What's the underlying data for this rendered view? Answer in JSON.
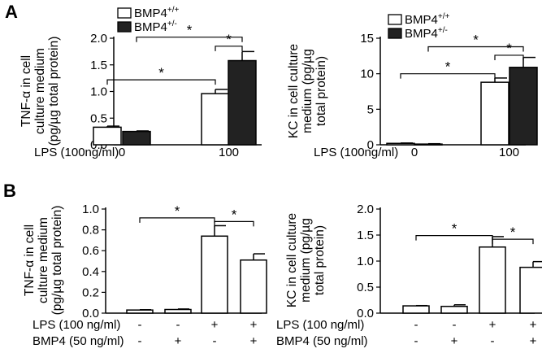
{
  "chart_data": [
    {
      "id": "A_left",
      "panel_label": "A",
      "type": "bar",
      "ylabel": [
        "TNF-α in cell",
        "culture medium",
        "(pg/µg total protein)"
      ],
      "ylim": [
        0,
        2.0
      ],
      "yticks": [
        "0.0",
        "0.5",
        "1.0",
        "1.5",
        "2.0"
      ],
      "x_row_labels": [
        "LPS (100ng/ml)"
      ],
      "groups": [
        {
          "label": "0"
        },
        {
          "label": "100"
        }
      ],
      "legend": {
        "entries": [
          {
            "name": "BMP4",
            "sup": "+/+",
            "color": "#ffffff"
          },
          {
            "name": "BMP4",
            "sup": "+/-",
            "color": "#222222"
          }
        ]
      },
      "series": [
        {
          "name": "BMP4+/+",
          "color": "#ffffff",
          "values": [
            0.33,
            0.96
          ],
          "errors": [
            0.02,
            0.08
          ]
        },
        {
          "name": "BMP4+/-",
          "color": "#222222",
          "values": [
            0.25,
            1.58
          ],
          "errors": [
            0.01,
            0.17
          ]
        }
      ],
      "significance": [
        {
          "from": [
            0,
            0
          ],
          "to": [
            1,
            0
          ],
          "label": "*",
          "level": 1.22
        },
        {
          "from": [
            1,
            1
          ],
          "to": [
            0,
            1
          ],
          "label": "*",
          "level": 2.02
        },
        {
          "from": [
            1,
            0
          ],
          "to": [
            1,
            1
          ],
          "label": "*",
          "level": 1.85
        }
      ]
    },
    {
      "id": "A_right",
      "type": "bar",
      "ylabel": [
        "KC in cell culture",
        "medium (pg/µg",
        "total protein)"
      ],
      "ylim": [
        0,
        15
      ],
      "yticks": [
        "0",
        "5",
        "10",
        "15"
      ],
      "x_row_labels": [
        "LPS (100ng/ml)"
      ],
      "groups": [
        {
          "label": "0"
        },
        {
          "label": "100"
        }
      ],
      "legend": {
        "entries": [
          {
            "name": "BMP4",
            "sup": "+/+",
            "color": "#ffffff"
          },
          {
            "name": "BMP4",
            "sup": "+/-",
            "color": "#222222"
          }
        ]
      },
      "series": [
        {
          "name": "BMP4+/+",
          "color": "#ffffff",
          "values": [
            0.2,
            8.8
          ],
          "errors": [
            0.05,
            0.6
          ]
        },
        {
          "name": "BMP4+/-",
          "color": "#222222",
          "values": [
            0.1,
            10.9
          ],
          "errors": [
            0.05,
            1.4
          ]
        }
      ],
      "significance": [
        {
          "from": [
            0,
            0
          ],
          "to": [
            1,
            0
          ],
          "label": "*",
          "level": 10.0
        },
        {
          "from": [
            1,
            1
          ],
          "to": [
            0,
            1
          ],
          "label": "*",
          "level": 13.8
        },
        {
          "from": [
            1,
            0
          ],
          "to": [
            1,
            1
          ],
          "label": "*",
          "level": 12.6
        }
      ]
    },
    {
      "id": "B_left",
      "panel_label": "B",
      "type": "bar",
      "ylabel": [
        "TNF-α in cell",
        "culture medium",
        "(pg/µg total protein)"
      ],
      "ylim": [
        0,
        1.0
      ],
      "yticks": [
        "0.0",
        "0.2",
        "0.4",
        "0.6",
        "0.8",
        "1.0"
      ],
      "x_row_labels": [
        "LPS (100 ng/ml)",
        "BMP4 (50 ng/ml)"
      ],
      "categories": [
        [
          "-",
          "-"
        ],
        [
          "-",
          "+"
        ],
        [
          "+",
          "-"
        ],
        [
          "+",
          "+"
        ]
      ],
      "series": [
        {
          "name": "",
          "color": "#ffffff",
          "values": [
            0.03,
            0.035,
            0.74,
            0.51
          ],
          "errors": [
            0.003,
            0.005,
            0.1,
            0.06
          ]
        }
      ],
      "significance": [
        {
          "from": 0,
          "to": 2,
          "label": "*",
          "level": 0.915
        },
        {
          "from": 2,
          "to": 3,
          "label": "*",
          "level": 0.88
        }
      ]
    },
    {
      "id": "B_right",
      "type": "bar",
      "ylabel": [
        "KC in cell culture",
        "medium (pg/µg",
        "total protein)"
      ],
      "ylim": [
        0,
        2.0
      ],
      "yticks": [
        "0.0",
        "0.5",
        "1.0",
        "1.5",
        "2.0"
      ],
      "x_row_labels": [
        "LPS (100 ng/ml)",
        "BMP4 (50 ng/ml)"
      ],
      "categories": [
        [
          "-",
          "-"
        ],
        [
          "-",
          "+"
        ],
        [
          "+",
          "-"
        ],
        [
          "+",
          "+"
        ]
      ],
      "series": [
        {
          "name": "",
          "color": "#ffffff",
          "values": [
            0.14,
            0.13,
            1.27,
            0.88
          ],
          "errors": [
            0.005,
            0.03,
            0.2,
            0.11
          ]
        }
      ],
      "significance": [
        {
          "from": 0,
          "to": 2,
          "label": "*",
          "level": 1.49
        },
        {
          "from": 2,
          "to": 3,
          "label": "*",
          "level": 1.42
        }
      ]
    }
  ]
}
